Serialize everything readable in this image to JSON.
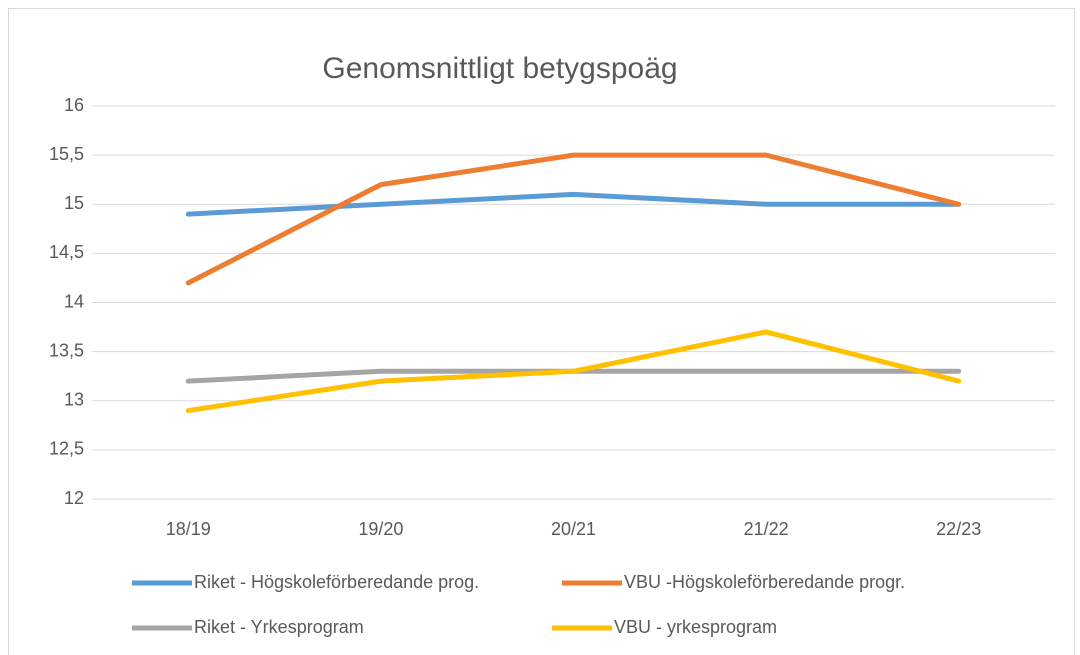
{
  "chart_data": {
    "type": "line",
    "title": "Genomsnittligt betygspoäg",
    "categories": [
      "18/19",
      "19/20",
      "20/21",
      "21/22",
      "22/23"
    ],
    "series": [
      {
        "name": "Riket - Högskoleförberedande prog.",
        "color": "#5b9bd5",
        "values": [
          14.9,
          15.0,
          15.1,
          15.0,
          15.0
        ]
      },
      {
        "name": "VBU -Högskoleförberedande progr.",
        "color": "#ed7d31",
        "values": [
          14.2,
          15.2,
          15.5,
          15.5,
          15.0
        ]
      },
      {
        "name": "Riket - Yrkesprogram",
        "color": "#a5a5a5",
        "values": [
          13.2,
          13.3,
          13.3,
          13.3,
          13.3
        ]
      },
      {
        "name": "VBU - yrkesprogram",
        "color": "#ffc000",
        "values": [
          12.9,
          13.2,
          13.3,
          13.7,
          13.2
        ]
      }
    ],
    "ylim": [
      12,
      16
    ],
    "yticks": [
      12,
      {
        "value": 12.5,
        "label": "12,5"
      },
      13,
      {
        "value": 13.5,
        "label": "13,5"
      },
      14,
      {
        "value": 14.5,
        "label": "14,5"
      },
      15,
      {
        "value": 15.5,
        "label": "15,5"
      },
      16
    ],
    "grid": true,
    "legend": "bottom"
  }
}
